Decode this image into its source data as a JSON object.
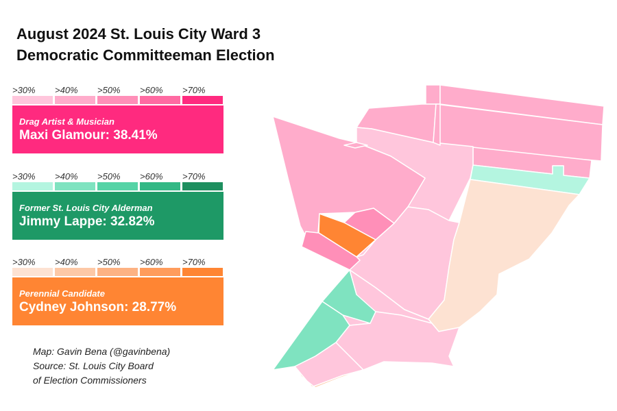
{
  "title": {
    "line1": "August 2024 St. Louis City Ward 3",
    "line2": "Democratic Committeeman Election"
  },
  "scale_labels": [
    ">30%",
    ">40%",
    ">50%",
    ">60%",
    ">70%"
  ],
  "candidates": [
    {
      "role": "Drag Artist & Musician",
      "name_result": "Maxi Glamour: 38.41%",
      "name": "Maxi Glamour",
      "vote_share_pct": 38.41,
      "box_color": "#ff2a7f",
      "scale_colors": [
        "#ffc6dc",
        "#ffaccb",
        "#ff8fb8",
        "#ff6aa2",
        "#ff2a7f"
      ]
    },
    {
      "role": "Former St. Louis City Alderman",
      "name_result": "Jimmy Lappe: 32.82%",
      "name": "Jimmy Lappe",
      "vote_share_pct": 32.82,
      "box_color": "#1e9966",
      "scale_colors": [
        "#b4f5e0",
        "#7fe3c0",
        "#55d3a6",
        "#33b885",
        "#1e8f5f"
      ]
    },
    {
      "role": "Perennial Candidate",
      "name_result": "Cydney Johnson: 28.77%",
      "name": "Cydney Johnson",
      "vote_share_pct": 28.77,
      "box_color": "#ff8533",
      "scale_colors": [
        "#fde2d2",
        "#fdc8a6",
        "#fdb283",
        "#ff9c5c",
        "#ff8533"
      ]
    }
  ],
  "credit": {
    "line1": "Map: Gavin Bena (@gavinbena)",
    "line2": "Source: St. Louis City Board",
    "line3": "of Election Commissioners"
  },
  "precincts": [
    {
      "leader": "Maxi Glamour",
      "bucket": ">30%",
      "color": "#ffaccb"
    },
    {
      "leader": "Maxi Glamour",
      "bucket": ">30%",
      "color": "#ffaccb"
    },
    {
      "leader": "Maxi Glamour",
      "bucket": ">30%",
      "color": "#ffaccb"
    },
    {
      "leader": "Maxi Glamour",
      "bucket": ">30%",
      "color": "#ffaccb"
    },
    {
      "leader": "Maxi Glamour",
      "bucket": ">30%",
      "color": "#ffaccb"
    },
    {
      "leader": "Maxi Glamour",
      "bucket": ">30%",
      "color": "#ffc6dc"
    },
    {
      "leader": "Maxi Glamour",
      "bucket": ">30%",
      "color": "#ffaccb"
    },
    {
      "leader": "Maxi Glamour",
      "bucket": ">30%",
      "color": "#ffaccb"
    },
    {
      "leader": "Maxi Glamour",
      "bucket": ">30%",
      "color": "#ffaccb"
    },
    {
      "leader": "Maxi Glamour",
      "bucket": ">30%",
      "color": "#ffc6dc"
    },
    {
      "leader": "Jimmy Lappe",
      "bucket": ">30%",
      "color": "#b4f5e0"
    },
    {
      "leader": "Cydney Johnson",
      "bucket": ">30%",
      "color": "#fde2d2"
    },
    {
      "leader": "Maxi Glamour",
      "bucket": ">30%",
      "color": "#ffc6dc"
    },
    {
      "leader": "Maxi Glamour",
      "bucket": ">30%",
      "color": "#ffc6dc"
    },
    {
      "leader": "Maxi Glamour",
      "bucket": ">50%",
      "color": "#ff8fb8"
    },
    {
      "leader": "Cydney Johnson",
      "bucket": ">70%",
      "color": "#ff8533"
    },
    {
      "leader": "Maxi Glamour",
      "bucket": ">50%",
      "color": "#ff8fb8"
    },
    {
      "leader": "Maxi Glamour",
      "bucket": ">30%",
      "color": "#ffc6dc"
    },
    {
      "leader": "Jimmy Lappe",
      "bucket": ">40%",
      "color": "#7fe3c0"
    },
    {
      "leader": "Jimmy Lappe",
      "bucket": ">40%",
      "color": "#7fe3c0"
    },
    {
      "leader": "Maxi Glamour",
      "bucket": ">30%",
      "color": "#ffc6dc"
    },
    {
      "leader": "Cydney Johnson",
      "bucket": ">40%",
      "color": "#fdc8a6"
    }
  ]
}
